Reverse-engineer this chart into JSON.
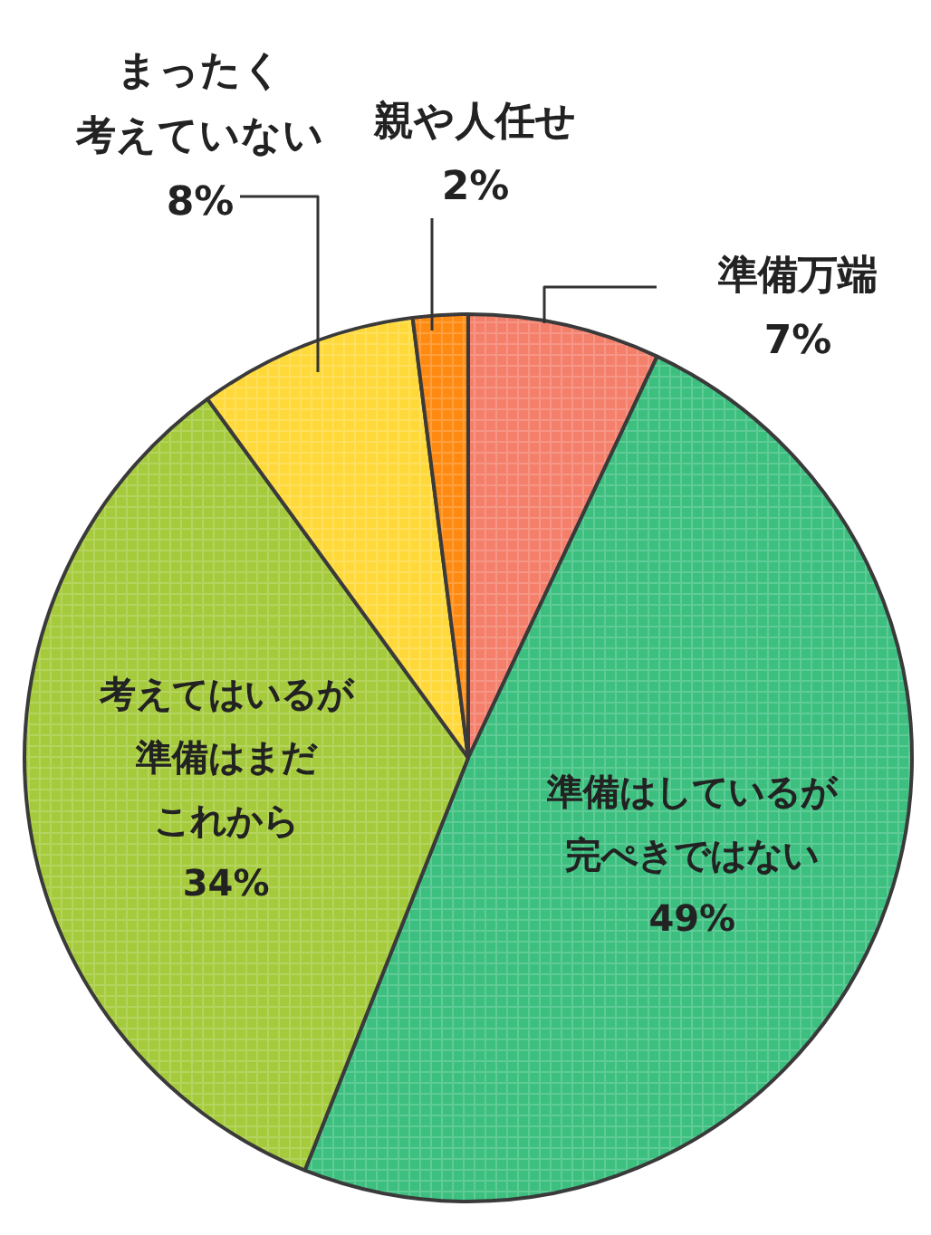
{
  "chart_data": {
    "type": "pie",
    "categories": [
      "準備万端",
      "準備はしているが完ぺきではない",
      "考えてはいるが準備はまだこれから",
      "まったく考えていない",
      "親や人任せ"
    ],
    "values": [
      7,
      49,
      34,
      8,
      2
    ],
    "value_labels": [
      "7%",
      "49%",
      "34%",
      "8%",
      "2%"
    ],
    "colors": [
      "#f47f6b",
      "#3cbf7f",
      "#a5cb3c",
      "#ffd93a",
      "#ff8a12"
    ]
  }
}
